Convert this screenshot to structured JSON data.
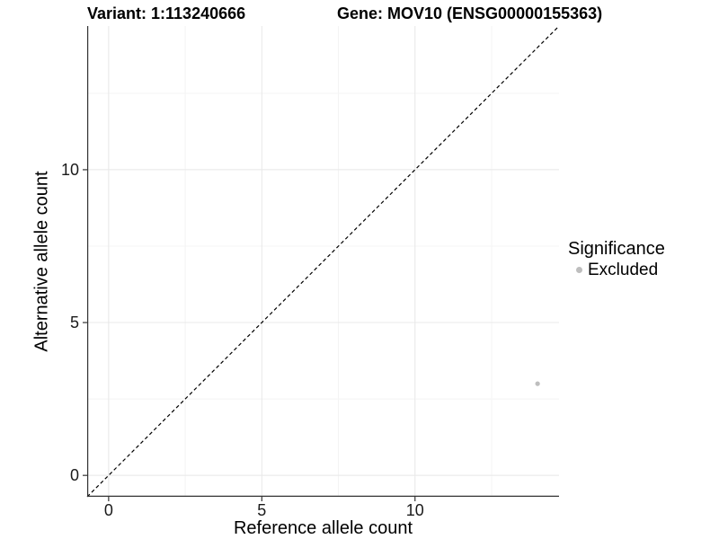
{
  "chart_data": {
    "type": "scatter",
    "title_left": "Variant: 1:113240666",
    "title_right": "Gene: MOV10 (ENSG00000155363)",
    "xlabel": "Reference allele count",
    "ylabel": "Alternative allele count",
    "xlim": [
      -0.7,
      14.7
    ],
    "ylim": [
      -0.7,
      14.7
    ],
    "x_ticks": [
      0,
      5,
      10
    ],
    "y_ticks": [
      0,
      5,
      10
    ],
    "x_minor_ticks": [
      2.5,
      7.5,
      12.5
    ],
    "y_minor_ticks": [
      2.5,
      7.5,
      12.5
    ],
    "grid": true,
    "identity_line": {
      "style": "dashed",
      "color": "#000000",
      "from": [
        -0.7,
        -0.7
      ],
      "to": [
        14.7,
        14.7
      ]
    },
    "series": [
      {
        "name": "Excluded",
        "color": "#bebebe",
        "points": [
          {
            "x": 14,
            "y": 3
          }
        ]
      }
    ],
    "legend": {
      "title": "Significance",
      "position": "right",
      "items": [
        {
          "label": "Excluded",
          "color": "#bebebe"
        }
      ]
    },
    "colors": {
      "background": "#ffffff",
      "axis_line": "#333333",
      "tick_mark": "#333333",
      "tick_text": "#1a1a1a",
      "grid_major": "#e8e8e8",
      "grid_minor": "#f4f4f4"
    }
  }
}
